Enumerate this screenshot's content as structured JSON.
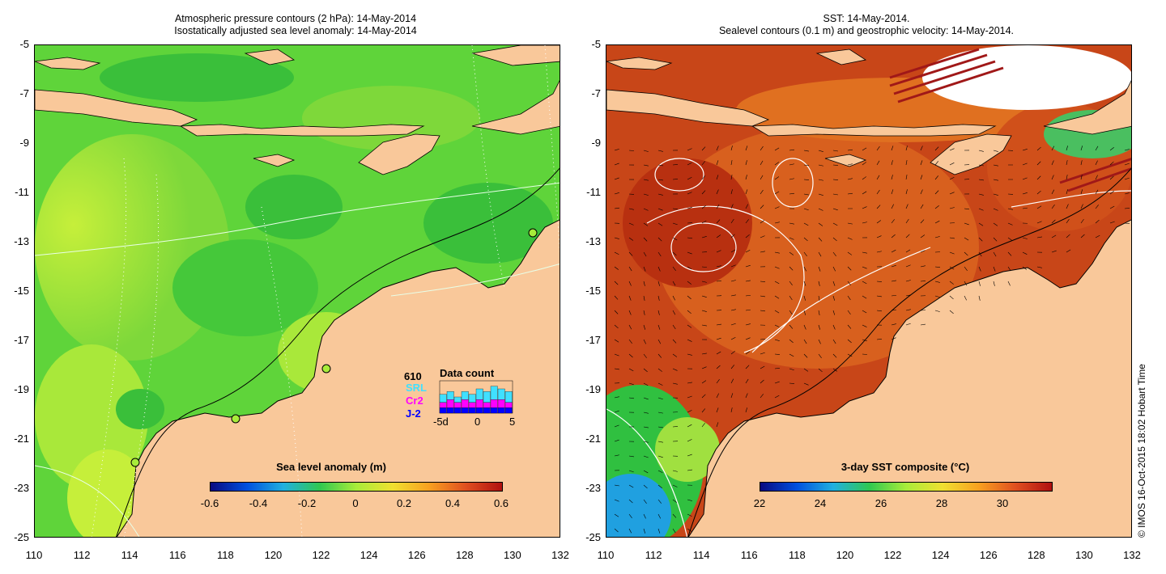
{
  "left_panel": {
    "title_line1": "Atmospheric pressure contours (2 hPa): 14-May-2014",
    "title_line2": "Isostatically adjusted sea level anomaly: 14-May-2014",
    "colorbar": {
      "title": "Sea level anomaly (m)",
      "ticks": [
        "-0.6",
        "-0.4",
        "-0.2",
        "0",
        "0.2",
        "0.4",
        "0.6"
      ]
    },
    "data_count": {
      "title": "Data count",
      "total": "610",
      "missions": [
        "SRL",
        "Cr2",
        "J-2"
      ],
      "mission_colors": [
        "#40e0ff",
        "#ff00ff",
        "#0000ff"
      ],
      "axis_labels": [
        "-5d",
        "0",
        "5"
      ],
      "bar_top": [
        7,
        8,
        6,
        8,
        7,
        9,
        8,
        10,
        9,
        8
      ],
      "bar_mid": [
        4,
        5,
        4,
        5,
        4,
        5,
        4,
        5,
        5,
        4
      ],
      "bar_bottom": [
        2,
        2,
        2,
        2,
        2,
        2,
        2,
        2,
        2,
        2
      ]
    },
    "station_icon": "tide-gauge-circle-icon"
  },
  "right_panel": {
    "title_line1": "SST: 14-May-2014.",
    "title_line2": "Sealevel contours (0.1 m) and geostrophic velocity: 14-May-2014.",
    "colorbar": {
      "title": "3-day SST composite (°C)",
      "ticks": [
        "22",
        "24",
        "26",
        "28",
        "30"
      ]
    }
  },
  "axes": {
    "x_ticks": [
      "110",
      "112",
      "114",
      "116",
      "118",
      "120",
      "122",
      "124",
      "126",
      "128",
      "130",
      "132"
    ],
    "y_ticks": [
      "-5",
      "-7",
      "-9",
      "-11",
      "-13",
      "-15",
      "-17",
      "-19",
      "-21",
      "-23",
      "-25"
    ]
  },
  "copyright": "© IMOS 16-Oct-2015 18:02 Hobart Time",
  "colors": {
    "land": "#f9c89a",
    "ocean_green": "#3ccf3c",
    "ocean_lime": "#a8ec3a",
    "sst_red": "#c83a14",
    "sst_orange": "#e06a1e"
  }
}
